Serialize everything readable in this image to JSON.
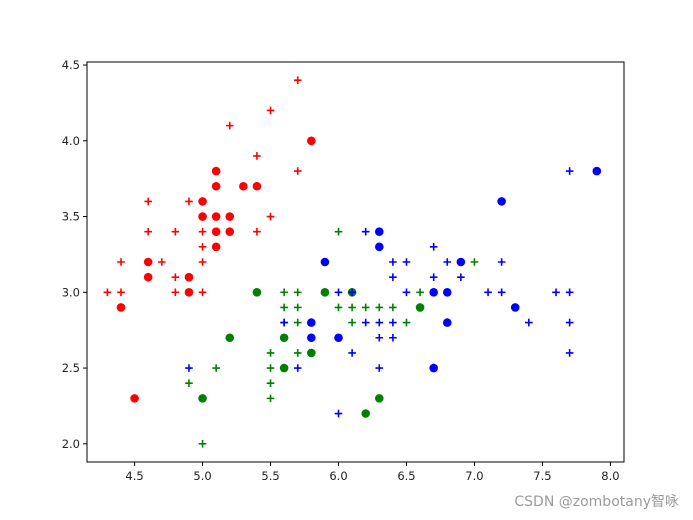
{
  "watermark": "CSDN @zombotany智咏",
  "chart_data": {
    "type": "scatter",
    "title": "",
    "xlabel": "",
    "ylabel": "",
    "xlim": [
      4.15,
      8.1
    ],
    "ylim": [
      1.88,
      4.52
    ],
    "xticks": [
      4.5,
      5.0,
      5.5,
      6.0,
      6.5,
      7.0,
      7.5,
      8.0
    ],
    "yticks": [
      2.0,
      2.5,
      3.0,
      3.5,
      4.0,
      4.5
    ],
    "tick_format": 1,
    "grid": false,
    "legend": "none",
    "series": [
      {
        "color": "#ff0000",
        "marker": "+",
        "points": [
          [
            4.3,
            3.0
          ],
          [
            4.4,
            3.0
          ],
          [
            4.4,
            3.2
          ],
          [
            4.6,
            3.4
          ],
          [
            4.6,
            3.6
          ],
          [
            4.7,
            3.2
          ],
          [
            4.8,
            3.0
          ],
          [
            4.8,
            3.1
          ],
          [
            4.8,
            3.4
          ],
          [
            4.9,
            3.0
          ],
          [
            4.9,
            3.6
          ],
          [
            5.0,
            3.0
          ],
          [
            5.0,
            3.2
          ],
          [
            5.0,
            3.3
          ],
          [
            5.0,
            3.4
          ],
          [
            5.1,
            3.4
          ],
          [
            5.1,
            3.5
          ],
          [
            5.1,
            3.8
          ],
          [
            5.2,
            4.1
          ],
          [
            5.4,
            3.4
          ],
          [
            5.4,
            3.9
          ],
          [
            5.5,
            3.5
          ],
          [
            5.5,
            4.2
          ],
          [
            5.7,
            3.8
          ],
          [
            5.7,
            4.4
          ]
        ]
      },
      {
        "color": "#ff0000",
        "marker": "o",
        "points": [
          [
            4.4,
            2.9
          ],
          [
            4.5,
            2.3
          ],
          [
            4.6,
            3.1
          ],
          [
            4.6,
            3.2
          ],
          [
            4.9,
            3.0
          ],
          [
            4.9,
            3.1
          ],
          [
            5.0,
            3.5
          ],
          [
            5.0,
            3.6
          ],
          [
            5.1,
            3.3
          ],
          [
            5.1,
            3.4
          ],
          [
            5.1,
            3.5
          ],
          [
            5.1,
            3.7
          ],
          [
            5.1,
            3.8
          ],
          [
            5.2,
            3.4
          ],
          [
            5.2,
            3.5
          ],
          [
            5.3,
            3.7
          ],
          [
            5.4,
            3.7
          ],
          [
            5.8,
            4.0
          ]
        ]
      },
      {
        "color": "#008000",
        "marker": "+",
        "points": [
          [
            4.9,
            2.4
          ],
          [
            5.0,
            2.0
          ],
          [
            5.1,
            2.5
          ],
          [
            5.5,
            2.3
          ],
          [
            5.5,
            2.4
          ],
          [
            5.5,
            2.5
          ],
          [
            5.5,
            2.6
          ],
          [
            5.6,
            2.8
          ],
          [
            5.6,
            2.9
          ],
          [
            5.6,
            3.0
          ],
          [
            5.7,
            2.6
          ],
          [
            5.7,
            2.8
          ],
          [
            5.7,
            2.9
          ],
          [
            5.7,
            3.0
          ],
          [
            6.0,
            2.9
          ],
          [
            6.0,
            3.4
          ],
          [
            6.1,
            2.8
          ],
          [
            6.1,
            2.9
          ],
          [
            6.2,
            2.9
          ],
          [
            6.3,
            2.9
          ],
          [
            6.4,
            2.9
          ],
          [
            6.5,
            2.8
          ],
          [
            6.6,
            3.0
          ],
          [
            7.0,
            3.2
          ]
        ]
      },
      {
        "color": "#008000",
        "marker": "o",
        "points": [
          [
            5.0,
            2.3
          ],
          [
            5.2,
            2.7
          ],
          [
            5.4,
            3.0
          ],
          [
            5.6,
            2.5
          ],
          [
            5.6,
            2.7
          ],
          [
            5.8,
            2.6
          ],
          [
            5.9,
            3.0
          ],
          [
            6.1,
            3.0
          ],
          [
            6.2,
            2.2
          ],
          [
            6.3,
            2.3
          ],
          [
            6.6,
            2.9
          ]
        ]
      },
      {
        "color": "#0000ff",
        "marker": "+",
        "points": [
          [
            4.9,
            2.5
          ],
          [
            5.6,
            2.8
          ],
          [
            5.7,
            2.5
          ],
          [
            5.8,
            2.7
          ],
          [
            6.0,
            2.2
          ],
          [
            6.0,
            3.0
          ],
          [
            6.1,
            2.6
          ],
          [
            6.1,
            3.0
          ],
          [
            6.2,
            2.8
          ],
          [
            6.2,
            3.4
          ],
          [
            6.3,
            2.5
          ],
          [
            6.3,
            2.7
          ],
          [
            6.3,
            2.8
          ],
          [
            6.4,
            2.7
          ],
          [
            6.4,
            2.8
          ],
          [
            6.4,
            3.1
          ],
          [
            6.4,
            3.2
          ],
          [
            6.5,
            3.0
          ],
          [
            6.5,
            3.2
          ],
          [
            6.7,
            3.1
          ],
          [
            6.7,
            3.3
          ],
          [
            6.8,
            3.2
          ],
          [
            6.9,
            3.1
          ],
          [
            7.1,
            3.0
          ],
          [
            7.2,
            3.0
          ],
          [
            7.2,
            3.2
          ],
          [
            7.4,
            2.8
          ],
          [
            7.6,
            3.0
          ],
          [
            7.7,
            2.6
          ],
          [
            7.7,
            2.8
          ],
          [
            7.7,
            3.0
          ],
          [
            7.7,
            3.8
          ]
        ]
      },
      {
        "color": "#0000ff",
        "marker": "o",
        "points": [
          [
            5.8,
            2.7
          ],
          [
            5.8,
            2.8
          ],
          [
            5.9,
            3.2
          ],
          [
            6.0,
            2.7
          ],
          [
            6.3,
            3.3
          ],
          [
            6.3,
            3.4
          ],
          [
            6.7,
            2.5
          ],
          [
            6.7,
            3.0
          ],
          [
            6.8,
            2.8
          ],
          [
            6.8,
            3.0
          ],
          [
            6.9,
            3.2
          ],
          [
            7.2,
            3.6
          ],
          [
            7.3,
            2.9
          ],
          [
            7.9,
            3.8
          ]
        ]
      }
    ]
  }
}
